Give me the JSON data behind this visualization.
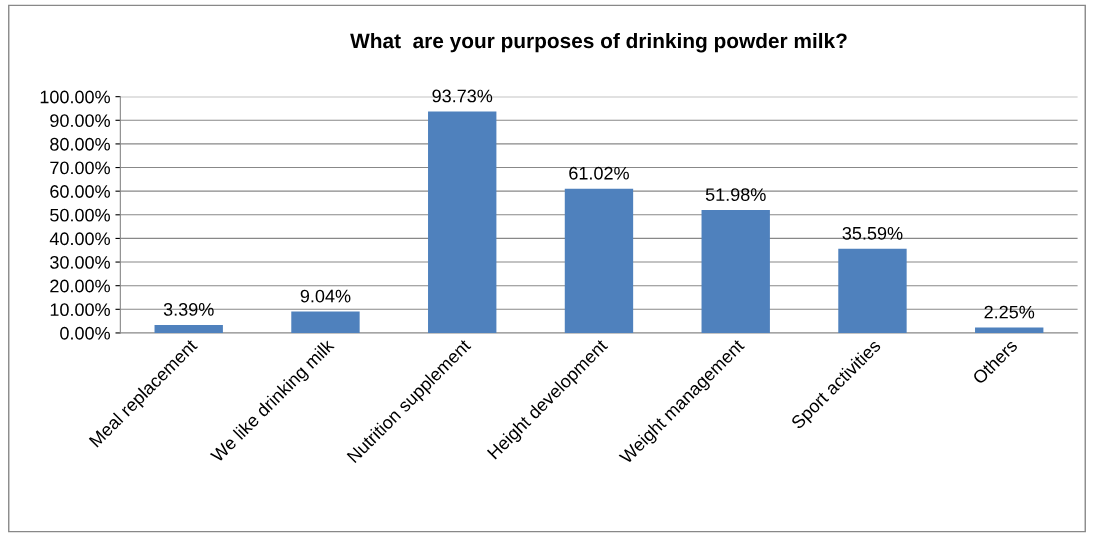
{
  "chart_data": {
    "type": "bar",
    "title": "What  are your purposes of drinking powder milk?",
    "categories": [
      "Meal replacement",
      "We like drinking milk",
      "Nutrition supplement",
      "Height development",
      "Weight management",
      "Sport activities",
      "Others"
    ],
    "values": [
      3.39,
      9.04,
      93.73,
      61.02,
      51.98,
      35.59,
      2.25
    ],
    "value_labels": [
      "3.39%",
      "9.04%",
      "93.73%",
      "61.02%",
      "51.98%",
      "35.59%",
      "2.25%"
    ],
    "color": "#4f81bd",
    "ylim": [
      0,
      100
    ],
    "yticks": [
      {
        "value": 0,
        "label": "0.00%"
      },
      {
        "value": 10,
        "label": "10.00%"
      },
      {
        "value": 20,
        "label": "20.00%"
      },
      {
        "value": 30,
        "label": "30.00%"
      },
      {
        "value": 40,
        "label": "40.00%"
      },
      {
        "value": 50,
        "label": "50.00%"
      },
      {
        "value": 60,
        "label": "60.00%"
      },
      {
        "value": 70,
        "label": "70.00%"
      },
      {
        "value": 80,
        "label": "80.00%"
      },
      {
        "value": 90,
        "label": "90.00%"
      },
      {
        "value": 100,
        "label": "100.00%"
      }
    ],
    "grid": "y"
  }
}
